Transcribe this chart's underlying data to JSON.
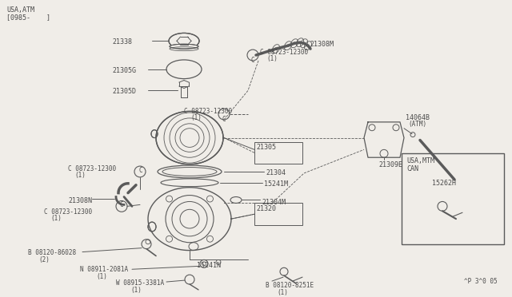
{
  "bg_color": "#f0ede8",
  "text_color": "#4a4a4a",
  "line_color": "#5a5a5a",
  "header_text": "USA,ATM\n[0985-    ]",
  "footer_text": "^P 3^0 05",
  "inset_label": "USA,MTM\nCAN",
  "inset_part": "15262H",
  "fig_width": 6.4,
  "fig_height": 3.72,
  "dpi": 100
}
